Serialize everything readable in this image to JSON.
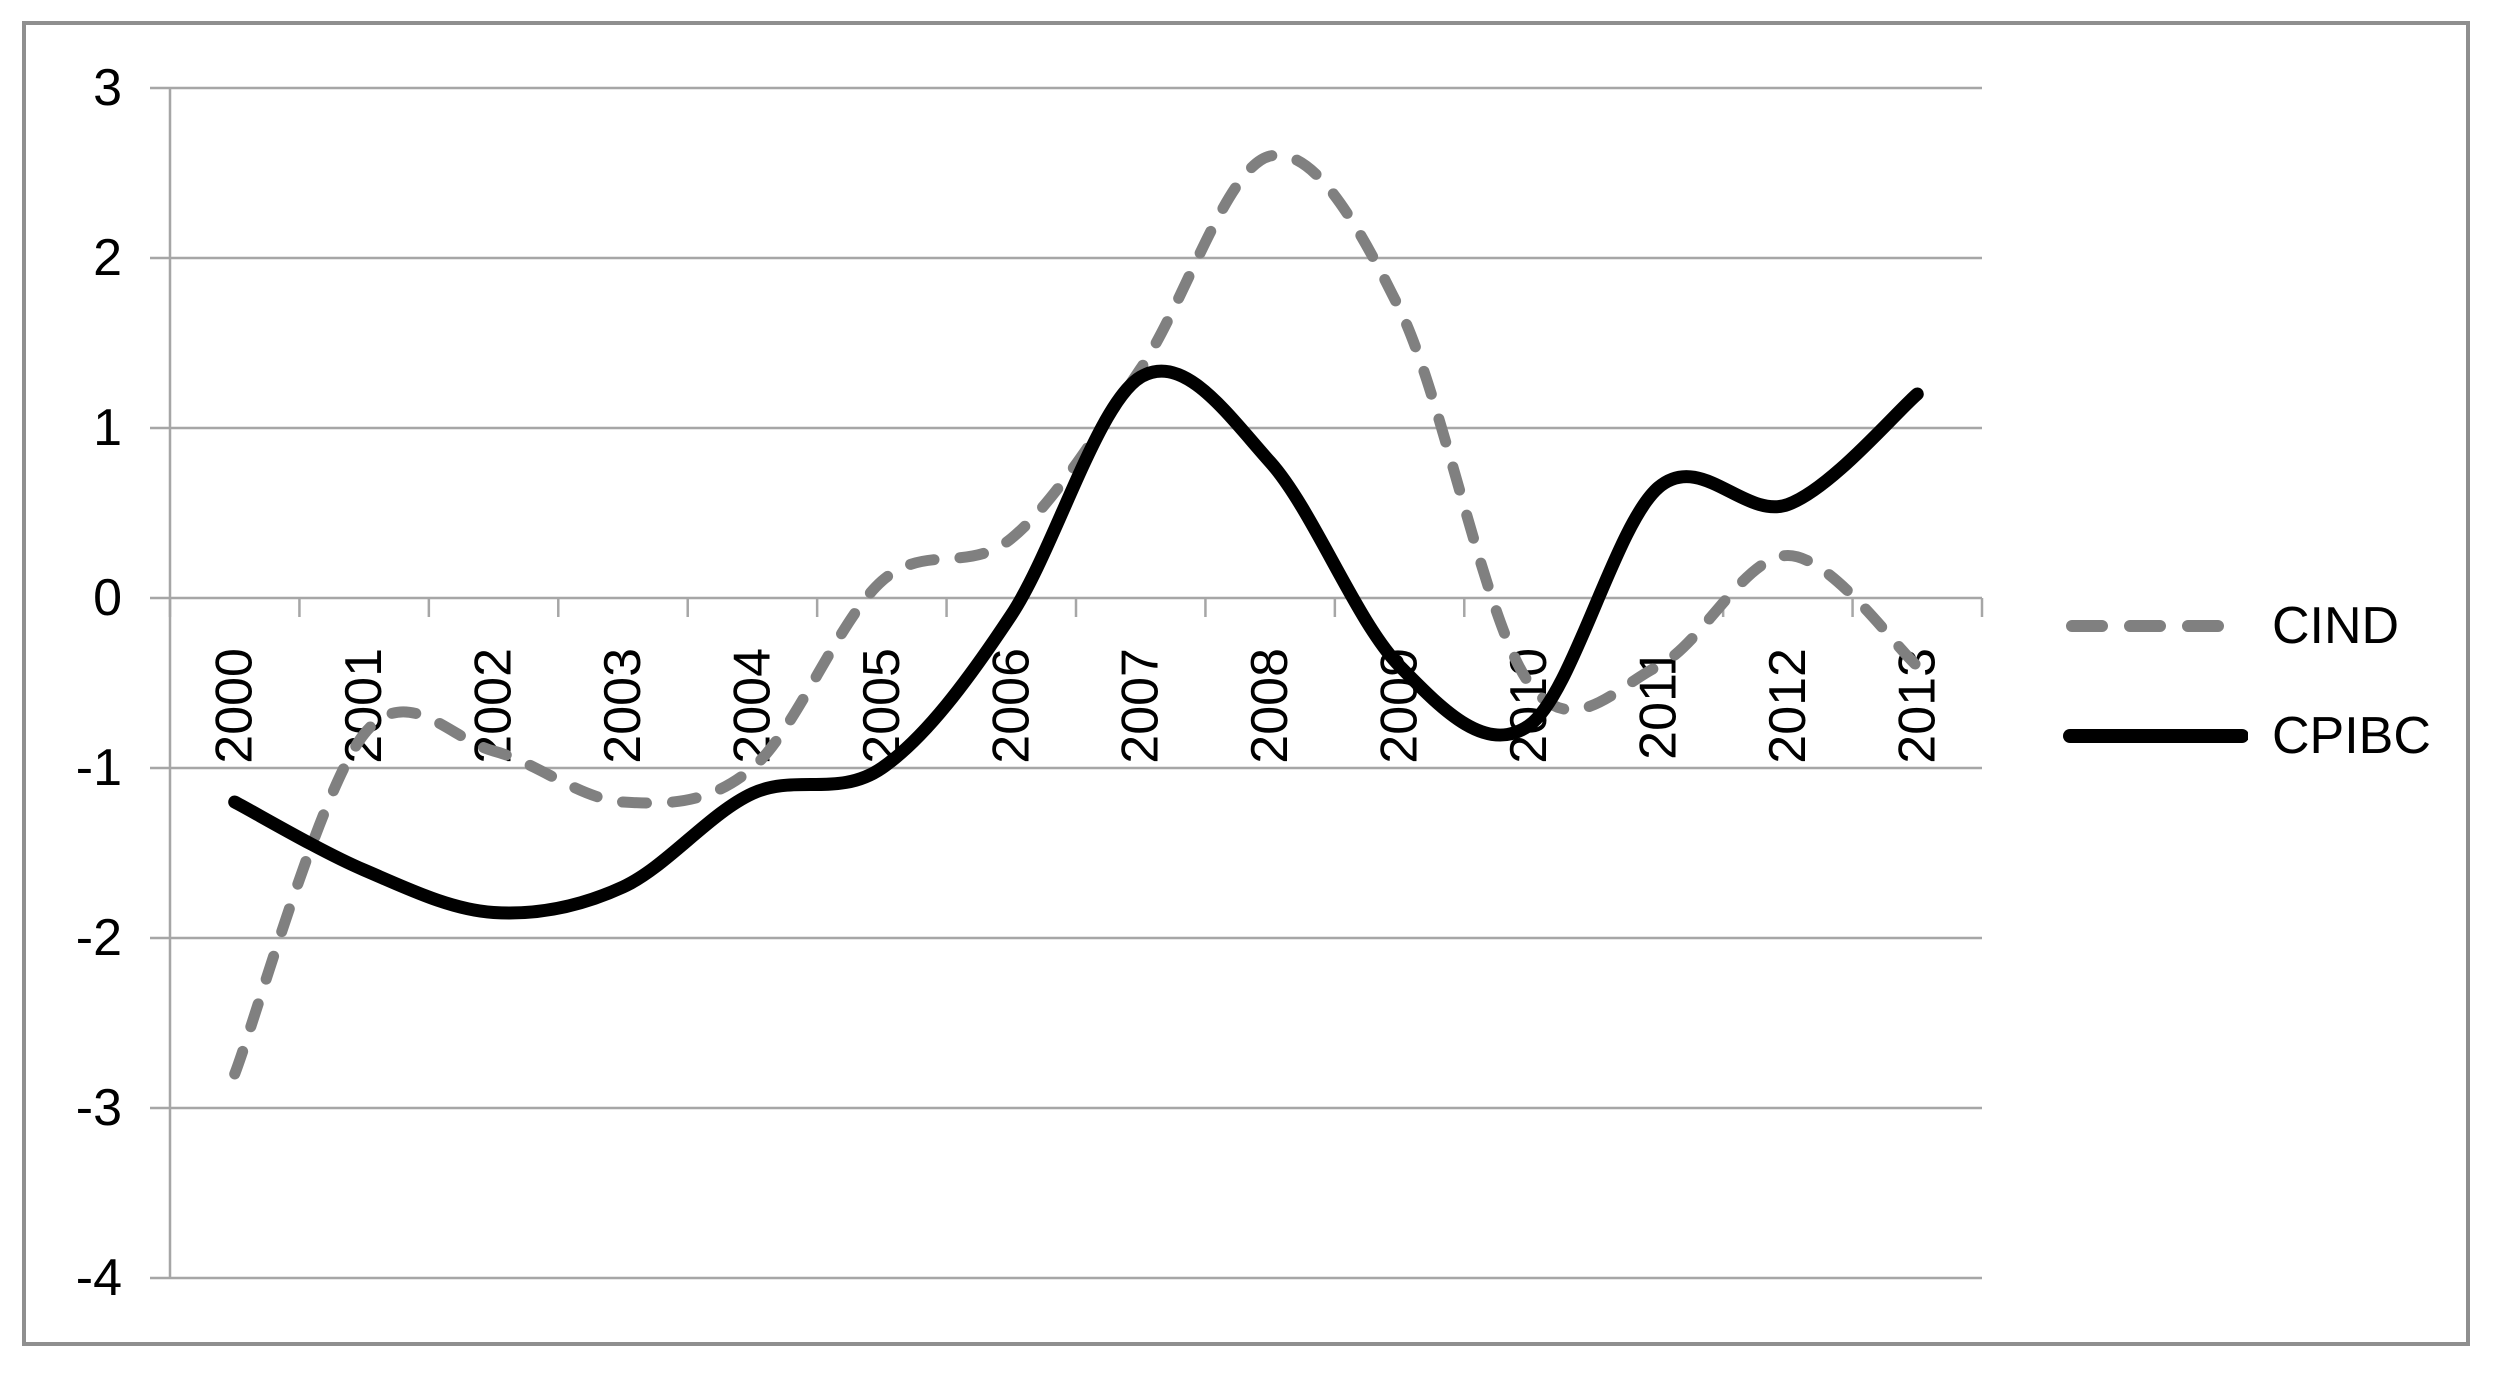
{
  "chart_data": {
    "type": "line",
    "categories": [
      "2000",
      "2001",
      "2002",
      "2003",
      "2004",
      "2005",
      "2006",
      "2007",
      "2008",
      "2009",
      "2010",
      "2011",
      "2012",
      "2013"
    ],
    "series": [
      {
        "name": "CIND",
        "style": "dashed",
        "color": "#808080",
        "values": [
          -2.8,
          -0.8,
          -0.9,
          -1.2,
          -1.0,
          0.1,
          0.35,
          1.35,
          2.6,
          1.7,
          -0.5,
          -0.4,
          0.25,
          -0.4
        ]
      },
      {
        "name": "CPIBC",
        "style": "solid",
        "color": "#000000",
        "values": [
          -1.2,
          -1.6,
          -1.85,
          -1.7,
          -1.15,
          -1.0,
          -0.1,
          1.3,
          0.8,
          -0.4,
          -0.75,
          0.65,
          0.55,
          1.2
        ]
      }
    ],
    "ylim": [
      -4,
      3
    ],
    "yticks": [
      3,
      2,
      1,
      0,
      -1,
      -2,
      -3,
      -4
    ],
    "ytick_labels": [
      "3",
      "2",
      "1",
      "0",
      "-1",
      "-2",
      "-3",
      "-4"
    ],
    "grid": true,
    "legend_position": "right",
    "smoothed": true
  },
  "colors": {
    "gridline": "#a6a6a6",
    "axis": "#a6a6a6",
    "border": "#8f8f8f",
    "text": "#000000",
    "cind_line": "#808080",
    "cpibc_line": "#000000",
    "background": "#ffffff"
  }
}
